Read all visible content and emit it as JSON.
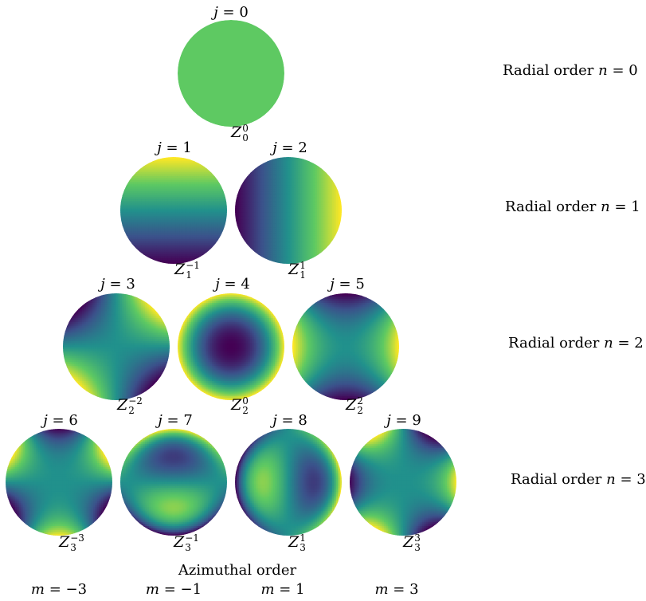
{
  "colormap": [
    "#440154",
    "#3b528b",
    "#21918c",
    "#5ec962",
    "#fde725"
  ],
  "modes": [
    {
      "j": "0",
      "n": 0,
      "m": 0,
      "label_sub": "0",
      "label_sup": "0"
    },
    {
      "j": "1",
      "n": 1,
      "m": -1,
      "label_sub": "1",
      "label_sup": "−1"
    },
    {
      "j": "2",
      "n": 1,
      "m": 1,
      "label_sub": "1",
      "label_sup": "1"
    },
    {
      "j": "3",
      "n": 2,
      "m": -2,
      "label_sub": "2",
      "label_sup": "−2"
    },
    {
      "j": "4",
      "n": 2,
      "m": 0,
      "label_sub": "2",
      "label_sup": "0"
    },
    {
      "j": "5",
      "n": 2,
      "m": 2,
      "label_sub": "2",
      "label_sup": "2"
    },
    {
      "j": "6",
      "n": 3,
      "m": -3,
      "label_sub": "3",
      "label_sup": "−3"
    },
    {
      "j": "7",
      "n": 3,
      "m": -1,
      "label_sub": "3",
      "label_sup": "−1"
    },
    {
      "j": "8",
      "n": 3,
      "m": 1,
      "label_sub": "3",
      "label_sup": "1"
    },
    {
      "j": "9",
      "n": 3,
      "m": 3,
      "label_sub": "3",
      "label_sup": "3"
    }
  ],
  "rows": [
    {
      "prefix": "Radial order",
      "sym": "n",
      "val": "0"
    },
    {
      "prefix": "Radial order",
      "sym": "n",
      "val": "1"
    },
    {
      "prefix": "Radial order",
      "sym": "n",
      "val": "2"
    },
    {
      "prefix": "Radial order",
      "sym": "n",
      "val": "3"
    }
  ],
  "azimuthal": {
    "title": "Azimuthal order",
    "sym": "m",
    "values": [
      "−3",
      "−1",
      "1",
      "3"
    ]
  },
  "j_symbol": "j",
  "z_symbol": "Z"
}
